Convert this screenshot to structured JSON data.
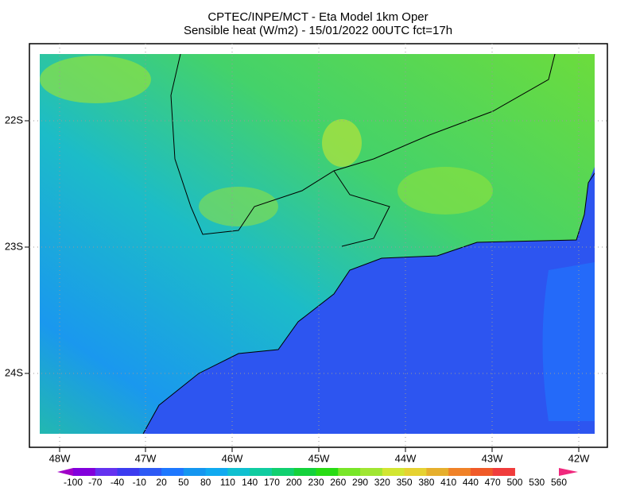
{
  "header": {
    "title_line1": "CPTEC/INPE/MCT -  Eta Model 1km Oper",
    "title_line2": "Sensible heat (W/m2) - 15/01/2022 00UTC fct=17h"
  },
  "map": {
    "lat_labels": [
      "22S",
      "23S",
      "24S"
    ],
    "lon_labels": [
      "48W",
      "47W",
      "46W",
      "45W",
      "44W",
      "43W",
      "42W"
    ]
  },
  "colorbar": {
    "colors": [
      "#a000c8",
      "#8200dc",
      "#6432f0",
      "#3c3cf0",
      "#2d5af5",
      "#1e78ff",
      "#1496f0",
      "#10aaf0",
      "#10c0d0",
      "#10cca0",
      "#10d070",
      "#14d23c",
      "#28dc14",
      "#78e628",
      "#a0e632",
      "#d2e632",
      "#e6d232",
      "#e6af2d",
      "#f08228",
      "#f05a28",
      "#f03c3c",
      "#f0287d"
    ],
    "labels": [
      "-100",
      "-70",
      "-40",
      "-10",
      "20",
      "50",
      "80",
      "110",
      "140",
      "170",
      "200",
      "230",
      "260",
      "290",
      "320",
      "350",
      "380",
      "410",
      "440",
      "470",
      "500",
      "530",
      "560"
    ]
  }
}
